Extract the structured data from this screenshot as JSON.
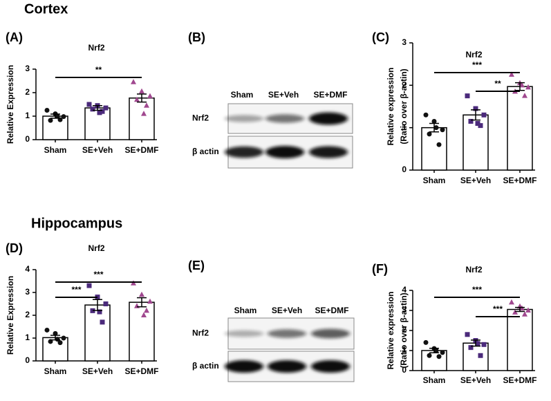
{
  "sections": [
    "Cortex",
    "Hippocampus"
  ],
  "panel_labels": [
    "(A)",
    "(B)",
    "(C)",
    "(D)",
    "(E)",
    "(F)"
  ],
  "blots": [
    {
      "lanes": [
        "Sham",
        "SE+Veh",
        "SE+DMF"
      ],
      "rows": [
        "Nrf2",
        "β actin"
      ]
    },
    {
      "lanes": [
        "Sham",
        "SE+Veh",
        "SE+DMF"
      ],
      "rows": [
        "Nrf2",
        "β actin"
      ]
    }
  ],
  "chart_data": [
    {
      "type": "bar",
      "title": "Nrf2",
      "ylabel": [
        "Relative Expression"
      ],
      "categories": [
        "Sham",
        "SE+Veh",
        "SE+DMF"
      ],
      "values": [
        1.0,
        1.35,
        1.77
      ],
      "errors": [
        0.09,
        0.1,
        0.17
      ],
      "points": [
        [
          1.25,
          1.1,
          0.98,
          0.82,
          0.85,
          1.0
        ],
        [
          1.5,
          1.45,
          1.35,
          1.3,
          1.2,
          1.15
        ],
        [
          2.45,
          2.05,
          1.85,
          1.7,
          1.45,
          1.1
        ]
      ],
      "colors": [
        "#111111",
        "#4b2a7b",
        "#a0488f"
      ],
      "markers": [
        "circle",
        "square",
        "triangle"
      ],
      "ylim": [
        0,
        3
      ],
      "yticks": [
        0,
        1,
        2,
        3
      ],
      "annotations": [
        {
          "text": "**",
          "from": "Sham",
          "to": "SE+DMF"
        }
      ]
    },
    {
      "type": "bar",
      "title": "Nrf2",
      "ylabel": [
        "Relative expression",
        "(Ratio over β-actin)"
      ],
      "categories": [
        "Sham",
        "SE+Veh",
        "SE+DMF"
      ],
      "values": [
        1.0,
        1.3,
        1.97
      ],
      "errors": [
        0.1,
        0.12,
        0.09
      ],
      "points": [
        [
          1.3,
          1.15,
          0.95,
          0.85,
          0.6,
          1.0
        ],
        [
          1.75,
          1.45,
          1.3,
          1.15,
          1.05,
          1.1
        ],
        [
          2.25,
          2.05,
          1.95,
          1.85,
          1.75,
          2.0
        ]
      ],
      "colors": [
        "#111111",
        "#4b2a7b",
        "#a0488f"
      ],
      "markers": [
        "circle",
        "square",
        "triangle"
      ],
      "ylim": [
        0,
        3
      ],
      "yticks": [
        0,
        1,
        2,
        3
      ],
      "annotations": [
        {
          "text": "***",
          "from": "Sham",
          "to": "SE+DMF"
        },
        {
          "text": "**",
          "from": "SE+Veh",
          "to": "SE+DMF"
        }
      ]
    },
    {
      "type": "bar",
      "title": "Nrf2",
      "ylabel": [
        "Relative Expression"
      ],
      "categories": [
        "Sham",
        "SE+Veh",
        "SE+DMF"
      ],
      "values": [
        1.02,
        2.45,
        2.57
      ],
      "errors": [
        0.1,
        0.24,
        0.2
      ],
      "points": [
        [
          1.35,
          1.2,
          1.0,
          0.85,
          0.8,
          0.95
        ],
        [
          3.3,
          2.8,
          2.5,
          2.2,
          1.7,
          2.15
        ],
        [
          3.4,
          2.9,
          2.6,
          2.4,
          2.2,
          2.0
        ]
      ],
      "colors": [
        "#111111",
        "#4b2a7b",
        "#a0488f"
      ],
      "markers": [
        "circle",
        "square",
        "triangle"
      ],
      "ylim": [
        0,
        4
      ],
      "yticks": [
        0,
        1,
        2,
        3,
        4
      ],
      "annotations": [
        {
          "text": "***",
          "from": "Sham",
          "to": "SE+Veh"
        },
        {
          "text": "***",
          "from": "Sham",
          "to": "SE+DMF"
        }
      ]
    },
    {
      "type": "bar",
      "title": "Nrf2",
      "ylabel": [
        "Relative expression",
        "(Ratio over β-actin)"
      ],
      "categories": [
        "Sham",
        "SE+Veh",
        "SE+DMF"
      ],
      "values": [
        1.0,
        1.37,
        3.05
      ],
      "errors": [
        0.11,
        0.15,
        0.1
      ],
      "points": [
        [
          1.4,
          1.1,
          0.9,
          0.75,
          0.7,
          1.0
        ],
        [
          1.8,
          1.5,
          1.3,
          1.15,
          0.75,
          1.35
        ],
        [
          3.4,
          3.2,
          3.0,
          2.9,
          2.8,
          3.1
        ]
      ],
      "colors": [
        "#111111",
        "#4b2a7b",
        "#a0488f"
      ],
      "markers": [
        "circle",
        "square",
        "triangle"
      ],
      "ylim": [
        0,
        4
      ],
      "yticks": [
        0,
        1,
        2,
        3,
        4
      ],
      "annotations": [
        {
          "text": "***",
          "from": "Sham",
          "to": "SE+DMF"
        },
        {
          "text": "***",
          "from": "SE+Veh",
          "to": "SE+DMF"
        }
      ]
    }
  ]
}
